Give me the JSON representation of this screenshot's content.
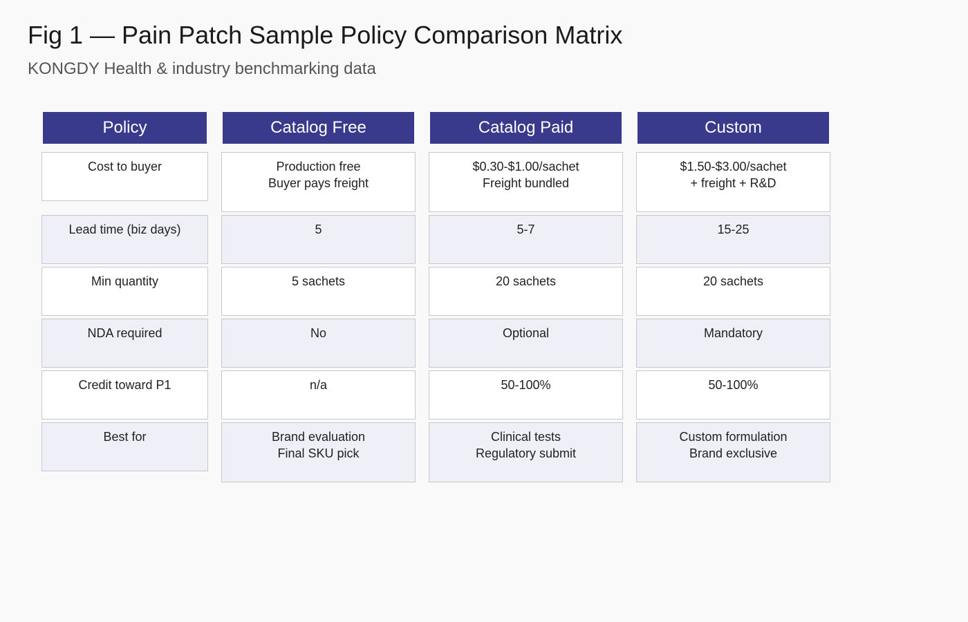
{
  "title": "Fig 1 — Pain Patch Sample Policy Comparison Matrix",
  "subtitle": "KONGDY Health & industry benchmarking data",
  "header_color": "#3a3a8c",
  "row_colors": [
    "#ffffff",
    "#efeff7"
  ],
  "columns": [
    {
      "header": "Policy",
      "cells": [
        "Cost to buyer",
        "Lead time (biz days)",
        "Min quantity",
        "NDA required",
        "Credit toward P1",
        "Best for"
      ]
    },
    {
      "header": "Catalog Free",
      "cells": [
        "Production free\nBuyer pays freight",
        "5",
        "5 sachets",
        "No",
        "n/a",
        "Brand evaluation\nFinal SKU pick"
      ]
    },
    {
      "header": "Catalog Paid",
      "cells": [
        "$0.30-$1.00/sachet\nFreight bundled",
        "5-7",
        "20 sachets",
        "Optional",
        "50-100%",
        "Clinical tests\nRegulatory submit"
      ]
    },
    {
      "header": "Custom",
      "cells": [
        "$1.50-$3.00/sachet\n+ freight + R&D",
        "15-25",
        "20 sachets",
        "Mandatory",
        "50-100%",
        "Custom formulation\nBrand exclusive"
      ]
    }
  ]
}
